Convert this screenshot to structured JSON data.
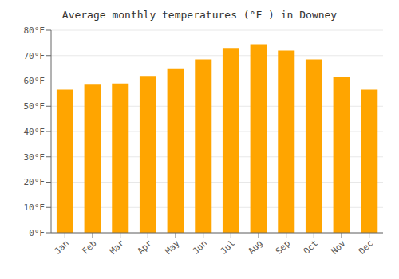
{
  "chart_data": {
    "type": "bar",
    "title": "Average monthly temperatures (°F ) in Downey",
    "categories": [
      "Jan",
      "Feb",
      "Mar",
      "Apr",
      "May",
      "Jun",
      "Jul",
      "Aug",
      "Sep",
      "Oct",
      "Nov",
      "Dec"
    ],
    "values": [
      56.5,
      58.5,
      59,
      62,
      65,
      68.5,
      73,
      74.5,
      72,
      68.5,
      61.5,
      56.5
    ],
    "color": "#FFA500",
    "ylim": [
      0,
      80
    ],
    "yticks": [
      {
        "value": 0,
        "label": "0°F"
      },
      {
        "value": 10,
        "label": "10°F"
      },
      {
        "value": 20,
        "label": "20°F"
      },
      {
        "value": 30,
        "label": "30°F"
      },
      {
        "value": 40,
        "label": "40°F"
      },
      {
        "value": 50,
        "label": "50°F"
      },
      {
        "value": 60,
        "label": "60°F"
      },
      {
        "value": 70,
        "label": "70°F"
      },
      {
        "value": 80,
        "label": "80°F"
      }
    ],
    "grid": true
  }
}
